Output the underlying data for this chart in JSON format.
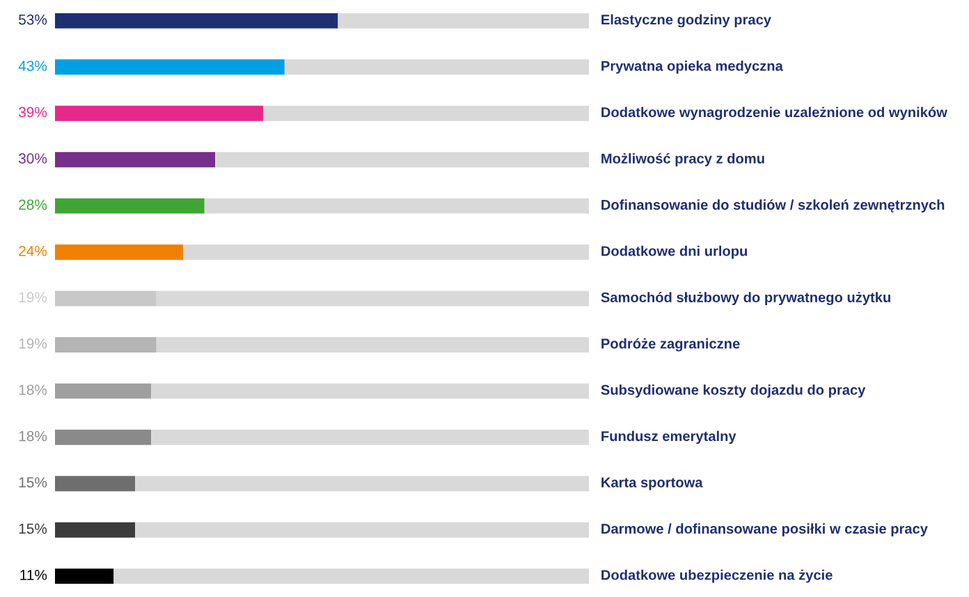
{
  "chart_data": {
    "type": "bar",
    "orientation": "horizontal",
    "stacked": true,
    "categories": [
      "Elastyczne godziny pracy",
      "Prywatna opieka medyczna",
      "Dodatkowe wynagrodzenie uzależnione od wyników",
      "Możliwość pracy z domu",
      "Dofinansowanie do studiów / szkoleń zewnętrznych",
      "Dodatkowe dni urlopu",
      "Samochód służbowy do prywatnego użytku",
      "Podróże zagraniczne",
      "Subsydiowane koszty dojazdu do pracy",
      "Fundusz emerytalny",
      "Karta sportowa",
      "Darmowe / dofinansowane posiłki w czasie pracy",
      "Dodatkowe ubezpieczenie na życie"
    ],
    "series": [
      {
        "values": [
          53,
          43,
          39,
          30,
          28,
          24,
          19,
          19,
          18,
          18,
          15,
          15,
          11
        ],
        "colors": [
          "#1f2f73",
          "#00a0e3",
          "#e6288a",
          "#762f8a",
          "#3fa535",
          "#f08000",
          "#c8c8c8",
          "#b4b4b4",
          "#9f9f9f",
          "#8a8a8a",
          "#6e6e6e",
          "#3c3c3c",
          "#000000"
        ],
        "value_labels": [
          "53%",
          "43%",
          "39%",
          "30%",
          "28%",
          "24%",
          "19%",
          "19%",
          "18%",
          "18%",
          "15%",
          "15%",
          "11%"
        ]
      },
      {
        "values": [
          47,
          57,
          61,
          70,
          72,
          76,
          81,
          81,
          82,
          82,
          85,
          85,
          89
        ],
        "color": "#d9d9d9"
      }
    ],
    "grid": false,
    "legend": false,
    "tick_labels": false
  }
}
